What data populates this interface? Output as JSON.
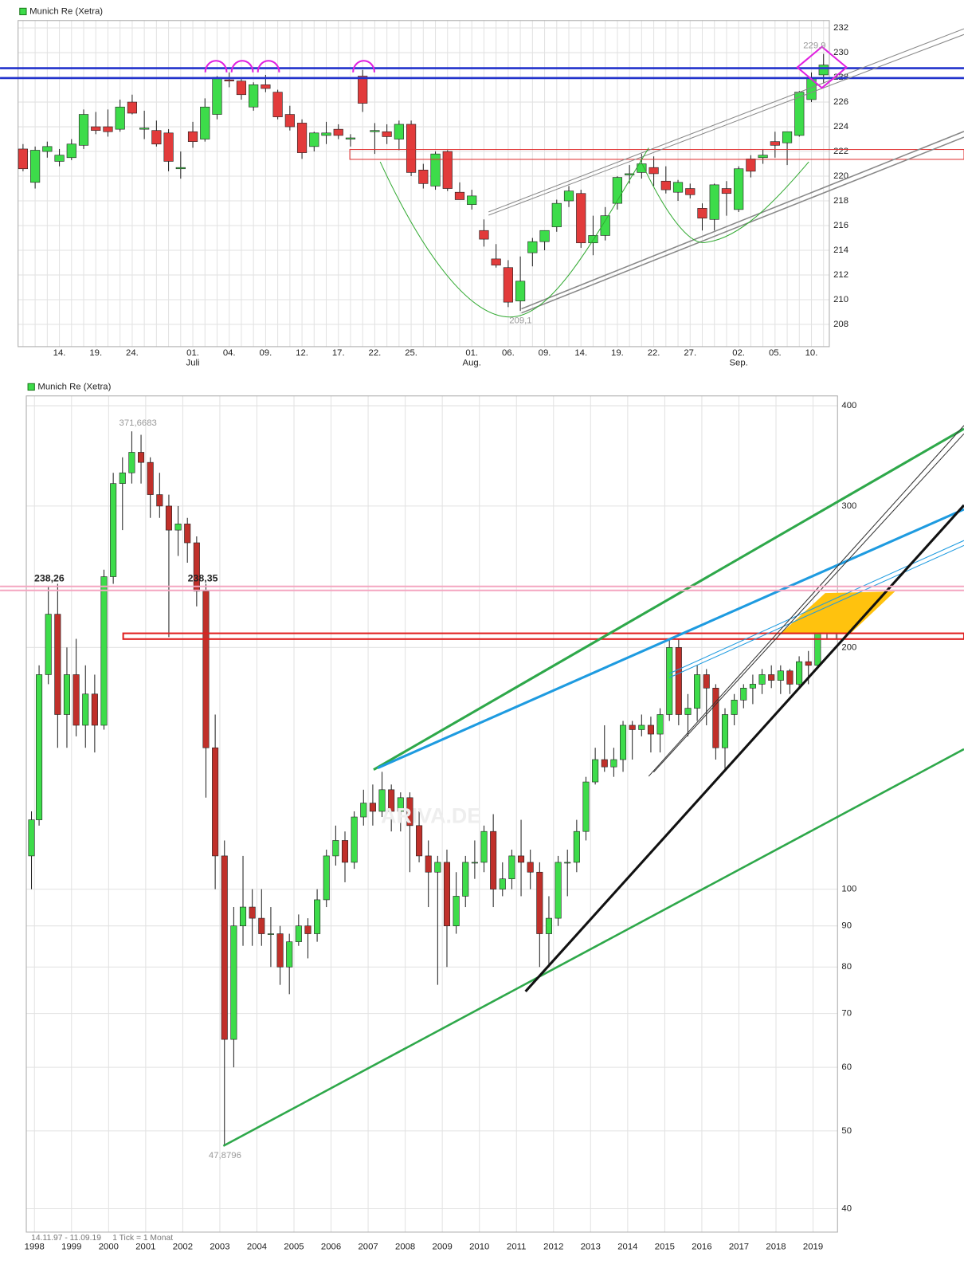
{
  "chart_data": [
    {
      "type": "candlestick",
      "title": "Munich Re (Xetra)",
      "categories": [
        null,
        null,
        null,
        "14.",
        null,
        null,
        "19.",
        null,
        null,
        "24.",
        null,
        null,
        null,
        null,
        "01.",
        null,
        null,
        "04.",
        null,
        null,
        "09.",
        null,
        null,
        "12.",
        null,
        null,
        "17.",
        null,
        null,
        "22.",
        null,
        null,
        "25.",
        null,
        null,
        null,
        null,
        "01.",
        null,
        null,
        "06.",
        null,
        null,
        "09.",
        null,
        null,
        "14.",
        null,
        null,
        "19.",
        null,
        null,
        "22.",
        null,
        null,
        "27.",
        null,
        null,
        null,
        "02.",
        null,
        null,
        "05.",
        null,
        null,
        "10.",
        null
      ],
      "month_labels": [
        null,
        null,
        null,
        null,
        null,
        null,
        null,
        null,
        null,
        null,
        null,
        null,
        null,
        null,
        "Juli",
        null,
        null,
        null,
        null,
        null,
        null,
        null,
        null,
        null,
        null,
        null,
        null,
        null,
        null,
        null,
        null,
        null,
        null,
        null,
        null,
        null,
        null,
        "Aug.",
        null,
        null,
        null,
        null,
        null,
        null,
        null,
        null,
        null,
        null,
        null,
        null,
        null,
        null,
        null,
        null,
        null,
        null,
        null,
        null,
        null,
        "Sep.",
        null,
        null,
        null,
        null,
        null,
        null,
        null
      ],
      "open": [
        222.2,
        219.5,
        222.0,
        221.2,
        221.5,
        222.5,
        224.0,
        224.0,
        223.8,
        226.0,
        223.8,
        223.7,
        223.5,
        220.6,
        223.6,
        223.0,
        225.0,
        227.8,
        227.7,
        225.6,
        227.4,
        226.8,
        225.0,
        224.3,
        222.4,
        223.3,
        223.8,
        223.0,
        228.1,
        223.6,
        223.6,
        223.0,
        224.2,
        220.5,
        219.2,
        222.0,
        218.7,
        217.7,
        215.6,
        213.3,
        212.6,
        209.9,
        213.8,
        214.7,
        215.9,
        218.0,
        218.6,
        214.6,
        215.2,
        217.8,
        220.1,
        220.3,
        220.7,
        219.6,
        218.7,
        219.0,
        217.4,
        216.5,
        219.0,
        217.3,
        221.4,
        221.5,
        222.8,
        222.7,
        223.3,
        226.2,
        228.2
      ],
      "high": [
        222.6,
        222.4,
        222.8,
        222.2,
        223.0,
        225.4,
        225.2,
        225.4,
        226.2,
        226.6,
        225.3,
        224.5,
        223.8,
        222.0,
        224.4,
        226.3,
        228.1,
        228.4,
        228.0,
        227.6,
        228.2,
        227.0,
        225.7,
        224.6,
        223.6,
        224.4,
        224.2,
        223.4,
        228.6,
        224.3,
        224.2,
        224.5,
        224.5,
        221.0,
        222.0,
        222.1,
        219.5,
        218.9,
        216.5,
        214.5,
        213.2,
        213.5,
        215.0,
        215.6,
        218.1,
        219.2,
        218.9,
        216.8,
        217.5,
        220.0,
        220.9,
        221.8,
        221.6,
        220.8,
        219.7,
        219.4,
        217.8,
        219.4,
        219.6,
        220.8,
        221.7,
        222.2,
        223.6,
        223.6,
        226.9,
        228.4,
        229.9
      ],
      "low": [
        220.4,
        219.0,
        221.5,
        220.8,
        221.3,
        222.2,
        223.4,
        223.2,
        223.6,
        225.0,
        223.0,
        222.4,
        220.4,
        219.8,
        222.3,
        222.8,
        224.6,
        227.2,
        226.2,
        225.3,
        226.8,
        224.6,
        223.7,
        221.4,
        222.0,
        222.6,
        223.0,
        222.4,
        225.2,
        221.8,
        222.6,
        222.1,
        220.0,
        219.0,
        218.9,
        218.8,
        218.2,
        217.3,
        214.3,
        212.6,
        209.4,
        209.1,
        212.7,
        214.0,
        215.5,
        217.5,
        214.2,
        213.6,
        214.8,
        217.3,
        219.4,
        219.8,
        219.2,
        218.6,
        218.0,
        218.2,
        215.6,
        215.6,
        216.8,
        217.1,
        219.9,
        221.0,
        221.5,
        220.9,
        223.2,
        226.0,
        227.5
      ],
      "close": [
        220.6,
        222.1,
        222.4,
        221.7,
        222.6,
        225.0,
        223.7,
        223.6,
        225.6,
        225.1,
        223.9,
        222.6,
        221.2,
        220.7,
        222.8,
        225.6,
        228.0,
        227.7,
        226.6,
        227.4,
        227.1,
        224.8,
        224.0,
        221.9,
        223.5,
        223.5,
        223.3,
        223.1,
        225.9,
        223.7,
        223.2,
        224.2,
        220.3,
        219.4,
        221.8,
        219.0,
        218.1,
        218.4,
        214.9,
        212.8,
        209.8,
        211.5,
        214.7,
        215.6,
        217.8,
        218.8,
        214.6,
        215.2,
        216.8,
        219.9,
        220.2,
        221.0,
        220.2,
        218.9,
        219.5,
        218.5,
        216.6,
        219.3,
        218.6,
        220.6,
        220.4,
        221.7,
        222.5,
        223.6,
        226.8,
        227.9,
        229.0
      ],
      "ylim": [
        206.2,
        232.6
      ],
      "yticks": [
        208,
        210,
        212,
        214,
        216,
        218,
        220,
        222,
        224,
        226,
        228,
        230,
        232
      ],
      "annotations": [
        {
          "value": 229.9,
          "label": "229,9"
        },
        {
          "value": 209.1,
          "label": "209,1"
        }
      ],
      "color_up": "#3ddc4a",
      "color_down": "#e23b3b",
      "grid": true
    },
    {
      "type": "candlestick",
      "title": "Munich Re (Xetra)",
      "log_scale": true,
      "x": [
        1997.92,
        1998.125,
        1998.375,
        1998.625,
        1998.875,
        1999.125,
        1999.375,
        1999.625,
        1999.875,
        2000.125,
        2000.375,
        2000.625,
        2000.875,
        2001.125,
        2001.375,
        2001.625,
        2001.875,
        2002.125,
        2002.375,
        2002.625,
        2002.875,
        2003.125,
        2003.375,
        2003.625,
        2003.875,
        2004.125,
        2004.375,
        2004.625,
        2004.875,
        2005.125,
        2005.375,
        2005.625,
        2005.875,
        2006.125,
        2006.375,
        2006.625,
        2006.875,
        2007.125,
        2007.375,
        2007.625,
        2007.875,
        2008.125,
        2008.375,
        2008.625,
        2008.875,
        2009.125,
        2009.375,
        2009.625,
        2009.875,
        2010.125,
        2010.375,
        2010.625,
        2010.875,
        2011.125,
        2011.375,
        2011.625,
        2011.875,
        2012.125,
        2012.375,
        2012.625,
        2012.875,
        2013.125,
        2013.375,
        2013.625,
        2013.875,
        2014.125,
        2014.375,
        2014.625,
        2014.875,
        2015.125,
        2015.375,
        2015.625,
        2015.875,
        2016.125,
        2016.375,
        2016.625,
        2016.875,
        2017.125,
        2017.375,
        2017.625,
        2017.875,
        2018.125,
        2018.375,
        2018.625,
        2018.875,
        2019.125,
        2019.375,
        2019.625
      ],
      "open": [
        110,
        122,
        185,
        220,
        165,
        185,
        160,
        175,
        160,
        245,
        320,
        330,
        350,
        340,
        310,
        300,
        280,
        285,
        270,
        235,
        150,
        110,
        65,
        90,
        95,
        92,
        88,
        88,
        80,
        86,
        90,
        88,
        97,
        110,
        115,
        108,
        123,
        128,
        125,
        133,
        125,
        130,
        120,
        110,
        105,
        108,
        90,
        98,
        108,
        108,
        118,
        100,
        103,
        110,
        108,
        105,
        88,
        92,
        108,
        108,
        118,
        136,
        145,
        142,
        145,
        160,
        158,
        160,
        156,
        165,
        200,
        165,
        168,
        185,
        178,
        150,
        165,
        172,
        178,
        180,
        185,
        182,
        187,
        180,
        192,
        190,
        210,
        222
      ],
      "high": [
        125,
        190,
        238,
        240,
        200,
        205,
        190,
        185,
        250,
        330,
        345,
        371.6683,
        368,
        345,
        330,
        310,
        300,
        290,
        275,
        240,
        165,
        115,
        95,
        110,
        100,
        100,
        95,
        90,
        88,
        93,
        92,
        100,
        112,
        120,
        118,
        125,
        133,
        135,
        140,
        135,
        132,
        132,
        125,
        115,
        110,
        112,
        105,
        110,
        115,
        120,
        124,
        108,
        112,
        122,
        112,
        108,
        98,
        110,
        112,
        122,
        138,
        150,
        160,
        150,
        162,
        162,
        165,
        164,
        168,
        205,
        205,
        175,
        190,
        188,
        180,
        168,
        175,
        180,
        185,
        188,
        190,
        190,
        188,
        195,
        198,
        215,
        230,
        232
      ],
      "low": [
        100,
        120,
        180,
        150,
        150,
        155,
        150,
        148,
        158,
        240,
        280,
        320,
        320,
        290,
        290,
        206,
        260,
        255,
        225,
        130,
        100,
        47.8796,
        60,
        85,
        85,
        85,
        80,
        76,
        74,
        85,
        82,
        86,
        95,
        107,
        102,
        106,
        120,
        120,
        123,
        118,
        118,
        105,
        108,
        95,
        76,
        80,
        88,
        95,
        103,
        105,
        95,
        98,
        100,
        98,
        100,
        80,
        80,
        90,
        98,
        105,
        115,
        135,
        140,
        138,
        140,
        145,
        155,
        148,
        148,
        162,
        160,
        155,
        162,
        160,
        145,
        140,
        160,
        168,
        170,
        175,
        178,
        175,
        175,
        178,
        180,
        188,
        205,
        205
      ],
      "close": [
        122,
        185,
        220,
        165,
        185,
        160,
        175,
        160,
        245,
        320,
        330,
        350,
        340,
        310,
        300,
        280,
        285,
        270,
        235,
        150,
        110,
        65,
        90,
        95,
        92,
        88,
        88,
        80,
        86,
        90,
        88,
        97,
        110,
        115,
        108,
        123,
        128,
        125,
        133,
        125,
        130,
        120,
        110,
        105,
        108,
        90,
        98,
        108,
        108,
        118,
        100,
        103,
        110,
        108,
        105,
        88,
        92,
        108,
        108,
        118,
        136,
        145,
        142,
        145,
        160,
        158,
        160,
        156,
        165,
        200,
        165,
        168,
        185,
        178,
        150,
        165,
        172,
        178,
        180,
        185,
        182,
        187,
        180,
        192,
        190,
        210,
        222,
        229
      ],
      "xlim": [
        1997.78,
        2019.66
      ],
      "xticks": [
        1998,
        1999,
        2000,
        2001,
        2002,
        2003,
        2004,
        2005,
        2006,
        2007,
        2008,
        2009,
        2010,
        2011,
        2012,
        2013,
        2014,
        2015,
        2016,
        2017,
        2018,
        2019
      ],
      "ylim": [
        37.4,
        411.4
      ],
      "yticks": [
        40,
        50,
        60,
        70,
        80,
        90,
        100,
        200,
        300,
        400
      ],
      "annotations": [
        {
          "value": 371.6683,
          "label": "371,6683"
        },
        {
          "value": 47.8796,
          "label": "47,8796"
        }
      ],
      "levels": [
        {
          "value": 238.26,
          "label": "238,26"
        },
        {
          "value": 238.35,
          "label": "238,35"
        }
      ],
      "period": "14.11.97 - 11.09.19",
      "tick_note": "1 Tick = 1 Monat",
      "watermark": "ARIVA.DE",
      "color_up": "#3ddc4a",
      "color_down": "#c0302a",
      "grid": true
    }
  ]
}
